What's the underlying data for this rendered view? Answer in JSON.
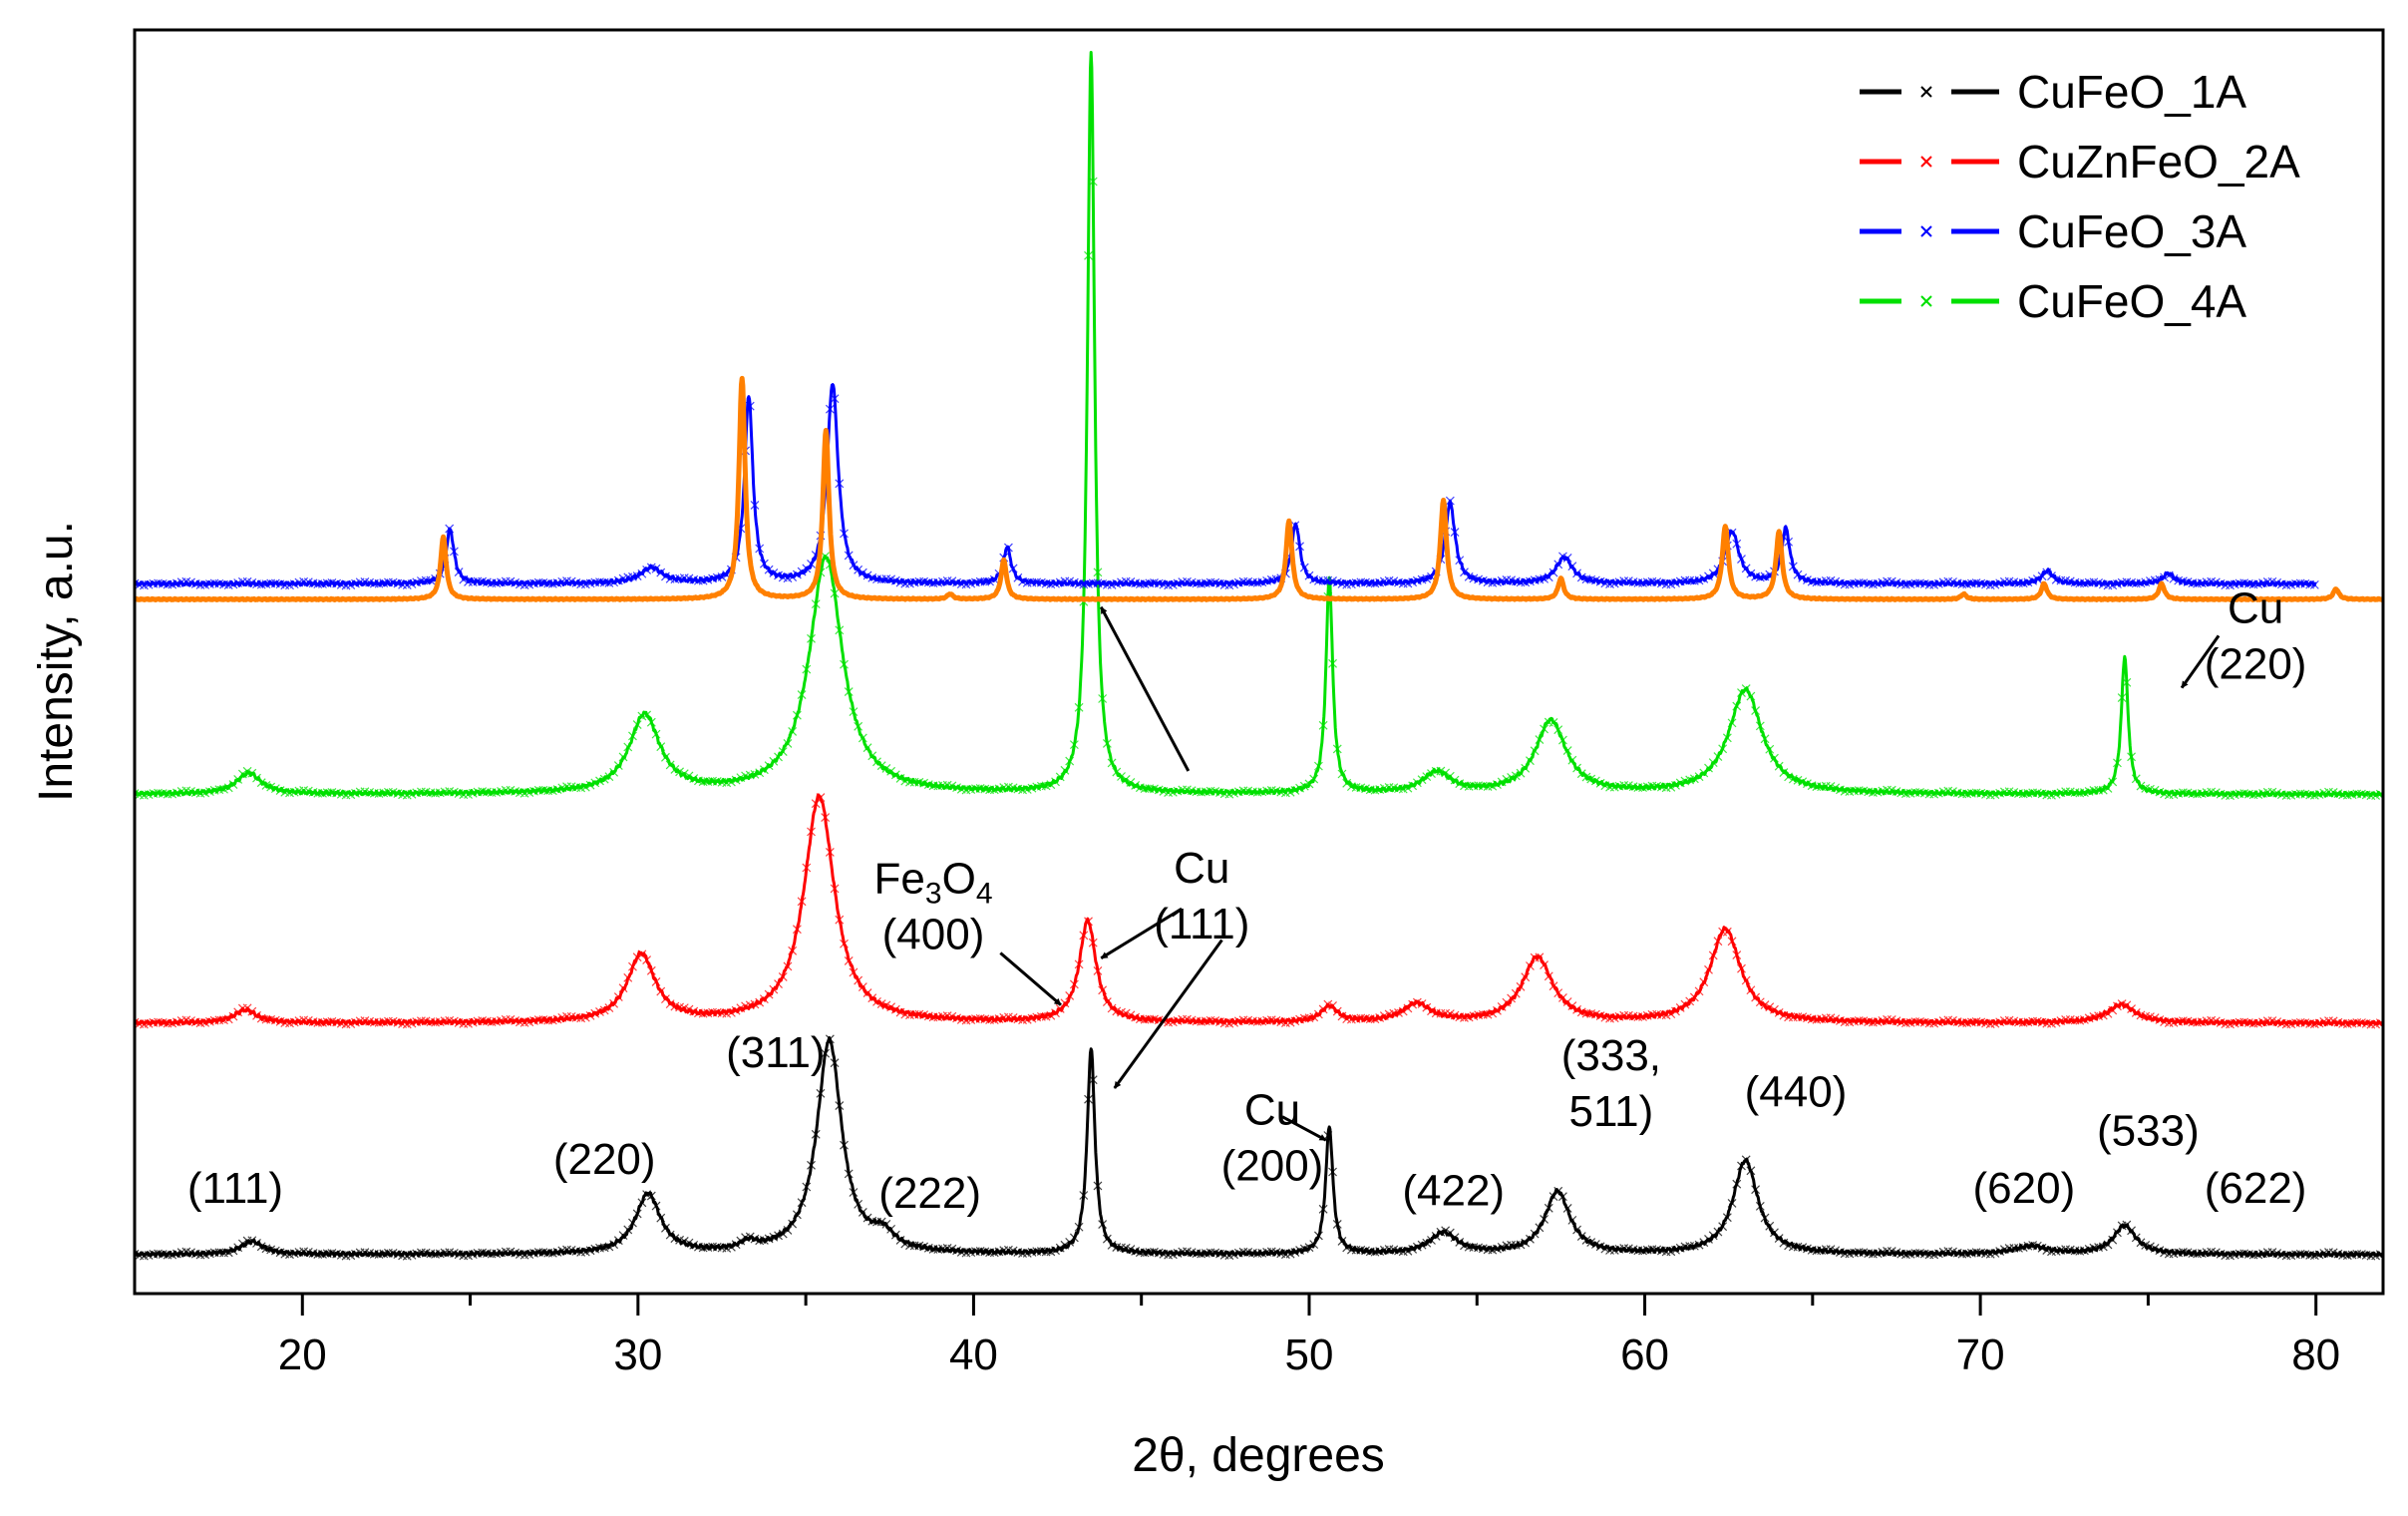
{
  "chart_data": {
    "type": "line",
    "title": "",
    "xlabel": "2θ, degrees",
    "ylabel": "Intensity, a.u.",
    "xlim": [
      15,
      82
    ],
    "xticks": [
      20,
      30,
      40,
      50,
      60,
      70,
      80
    ],
    "y_ticks_shown": false,
    "grid": false,
    "legend": {
      "placement": "top-right",
      "entries": [
        {
          "label": "CuFeO_1A",
          "color": "#000000"
        },
        {
          "label": "CuZnFeO_2A",
          "color": "#ff0000"
        },
        {
          "label": "CuFeO_3A",
          "color": "#0000ff"
        },
        {
          "label": "CuFeO_4A",
          "color": "#00e000"
        }
      ]
    },
    "series": [
      {
        "name": "CuFeO_1A",
        "color": "#000000",
        "marker": "x",
        "baseline": 1.5,
        "x_range": [
          15,
          82
        ],
        "peaks": [
          {
            "x": 18.5,
            "h": 0.5,
            "w": 0.4
          },
          {
            "x": 30.3,
            "h": 2.3,
            "w": 0.45
          },
          {
            "x": 33.3,
            "h": 0.3,
            "w": 0.3
          },
          {
            "x": 35.7,
            "h": 8.2,
            "w": 0.45
          },
          {
            "x": 37.3,
            "h": 0.6,
            "w": 0.4
          },
          {
            "x": 43.5,
            "h": 7.9,
            "w": 0.14
          },
          {
            "x": 50.6,
            "h": 4.9,
            "w": 0.13
          },
          {
            "x": 54.0,
            "h": 0.8,
            "w": 0.5
          },
          {
            "x": 57.4,
            "h": 2.4,
            "w": 0.45
          },
          {
            "x": 63.0,
            "h": 3.6,
            "w": 0.45
          },
          {
            "x": 71.5,
            "h": 0.3,
            "w": 0.6
          },
          {
            "x": 74.3,
            "h": 1.1,
            "w": 0.4
          }
        ]
      },
      {
        "name": "CuZnFeO_2A",
        "color": "#ff0000",
        "marker": "x",
        "baseline": 10.4,
        "x_range": [
          15,
          82
        ],
        "peaks": [
          {
            "x": 18.3,
            "h": 0.5,
            "w": 0.4
          },
          {
            "x": 30.1,
            "h": 2.6,
            "w": 0.5
          },
          {
            "x": 35.4,
            "h": 8.7,
            "w": 0.55
          },
          {
            "x": 43.4,
            "h": 3.9,
            "w": 0.3
          },
          {
            "x": 50.6,
            "h": 0.6,
            "w": 0.3
          },
          {
            "x": 53.2,
            "h": 0.7,
            "w": 0.5
          },
          {
            "x": 56.8,
            "h": 2.5,
            "w": 0.55
          },
          {
            "x": 62.4,
            "h": 3.6,
            "w": 0.55
          },
          {
            "x": 74.2,
            "h": 0.7,
            "w": 0.5
          }
        ]
      },
      {
        "name": "CuFeO_4A",
        "color": "#00e000",
        "marker": "x",
        "baseline": 19.2,
        "x_range": [
          15,
          82
        ],
        "peaks": [
          {
            "x": 18.4,
            "h": 0.8,
            "w": 0.45
          },
          {
            "x": 30.2,
            "h": 3.0,
            "w": 0.55
          },
          {
            "x": 35.6,
            "h": 9.1,
            "w": 0.6
          },
          {
            "x": 43.5,
            "h": 28.5,
            "w": 0.13
          },
          {
            "x": 50.6,
            "h": 8.3,
            "w": 0.12
          },
          {
            "x": 53.8,
            "h": 0.8,
            "w": 0.5
          },
          {
            "x": 57.2,
            "h": 2.8,
            "w": 0.55
          },
          {
            "x": 63.0,
            "h": 4.0,
            "w": 0.6
          },
          {
            "x": 74.3,
            "h": 5.3,
            "w": 0.12
          }
        ]
      },
      {
        "name": "CuFeO_3A",
        "color": "#0000ff",
        "marker": "x",
        "baseline": 27.3,
        "x_range": [
          15,
          80
        ],
        "peaks": [
          {
            "x": 24.4,
            "h": 2.1,
            "w": 0.14
          },
          {
            "x": 30.4,
            "h": 0.6,
            "w": 0.4
          },
          {
            "x": 33.3,
            "h": 7.2,
            "w": 0.15
          },
          {
            "x": 35.8,
            "h": 7.7,
            "w": 0.2
          },
          {
            "x": 41.0,
            "h": 1.4,
            "w": 0.14
          },
          {
            "x": 49.6,
            "h": 2.3,
            "w": 0.15
          },
          {
            "x": 54.2,
            "h": 3.1,
            "w": 0.18
          },
          {
            "x": 57.6,
            "h": 1.0,
            "w": 0.3
          },
          {
            "x": 62.6,
            "h": 2.0,
            "w": 0.25
          },
          {
            "x": 64.2,
            "h": 2.1,
            "w": 0.15
          },
          {
            "x": 72.0,
            "h": 0.5,
            "w": 0.2
          },
          {
            "x": 75.6,
            "h": 0.4,
            "w": 0.2
          }
        ]
      },
      {
        "name": "",
        "color": "#ff8000",
        "marker": "none",
        "baseline": 26.7,
        "x_range": [
          15,
          82
        ],
        "peaks": [
          {
            "x": 24.2,
            "h": 2.4,
            "w": 0.1
          },
          {
            "x": 33.1,
            "h": 8.5,
            "w": 0.11
          },
          {
            "x": 35.6,
            "h": 6.5,
            "w": 0.11
          },
          {
            "x": 39.3,
            "h": 0.2,
            "w": 0.1
          },
          {
            "x": 40.9,
            "h": 1.5,
            "w": 0.1
          },
          {
            "x": 49.4,
            "h": 3.0,
            "w": 0.11
          },
          {
            "x": 54.0,
            "h": 3.8,
            "w": 0.11
          },
          {
            "x": 57.5,
            "h": 0.8,
            "w": 0.1
          },
          {
            "x": 62.4,
            "h": 2.8,
            "w": 0.11
          },
          {
            "x": 64.0,
            "h": 2.6,
            "w": 0.11
          },
          {
            "x": 69.5,
            "h": 0.2,
            "w": 0.1
          },
          {
            "x": 71.9,
            "h": 0.6,
            "w": 0.1
          },
          {
            "x": 75.4,
            "h": 0.6,
            "w": 0.1
          },
          {
            "x": 80.6,
            "h": 0.4,
            "w": 0.1
          }
        ]
      }
    ],
    "annotations": [
      {
        "id": "a111",
        "lines": [
          "(111)"
        ],
        "x": 18.0,
        "y": 3.5
      },
      {
        "id": "a220",
        "lines": [
          "(220)"
        ],
        "x": 29.0,
        "y": 4.6
      },
      {
        "id": "a311",
        "lines": [
          "(311)"
        ],
        "x": 34.1,
        "y": 8.7
      },
      {
        "id": "a222",
        "lines": [
          "(222)"
        ],
        "x": 38.7,
        "y": 3.3
      },
      {
        "id": "aCu200",
        "lines": [
          "Cu",
          "(200)"
        ],
        "x": 48.9,
        "y": 6.5
      },
      {
        "id": "a422",
        "lines": [
          "(422)"
        ],
        "x": 54.3,
        "y": 3.4
      },
      {
        "id": "a333",
        "lines": [
          "(333,",
          "511)"
        ],
        "x": 59.0,
        "y": 8.6
      },
      {
        "id": "a440",
        "lines": [
          "(440)"
        ],
        "x": 64.5,
        "y": 7.2
      },
      {
        "id": "a620",
        "lines": [
          "(620)"
        ],
        "x": 71.3,
        "y": 3.5
      },
      {
        "id": "a533",
        "lines": [
          "(533)"
        ],
        "x": 75.0,
        "y": 5.7
      },
      {
        "id": "a622",
        "lines": [
          "(622)"
        ],
        "x": 78.2,
        "y": 3.5
      },
      {
        "id": "aFe3O4",
        "formula": true,
        "lines": [
          "Fe3O4",
          "(400)"
        ],
        "x": 38.8,
        "y": 15.4
      },
      {
        "id": "aCu111",
        "lines": [
          "Cu",
          "(111)"
        ],
        "x": 46.8,
        "y": 15.8
      },
      {
        "id": "aCu220",
        "lines": [
          "Cu",
          "(220)"
        ],
        "x": 78.2,
        "y": 25.8
      }
    ],
    "arrows": [
      {
        "from": [
          46.4,
          20.1
        ],
        "to": [
          43.8,
          26.4
        ]
      },
      {
        "from": [
          46.2,
          14.8
        ],
        "to": [
          43.8,
          12.9
        ]
      },
      {
        "from": [
          47.4,
          13.6
        ],
        "to": [
          44.2,
          7.9
        ]
      },
      {
        "from": [
          40.8,
          13.1
        ],
        "to": [
          42.6,
          11.1
        ]
      },
      {
        "from": [
          49.2,
          6.8
        ],
        "to": [
          50.5,
          5.9
        ]
      },
      {
        "from": [
          77.1,
          25.3
        ],
        "to": [
          76.0,
          23.3
        ]
      }
    ]
  }
}
